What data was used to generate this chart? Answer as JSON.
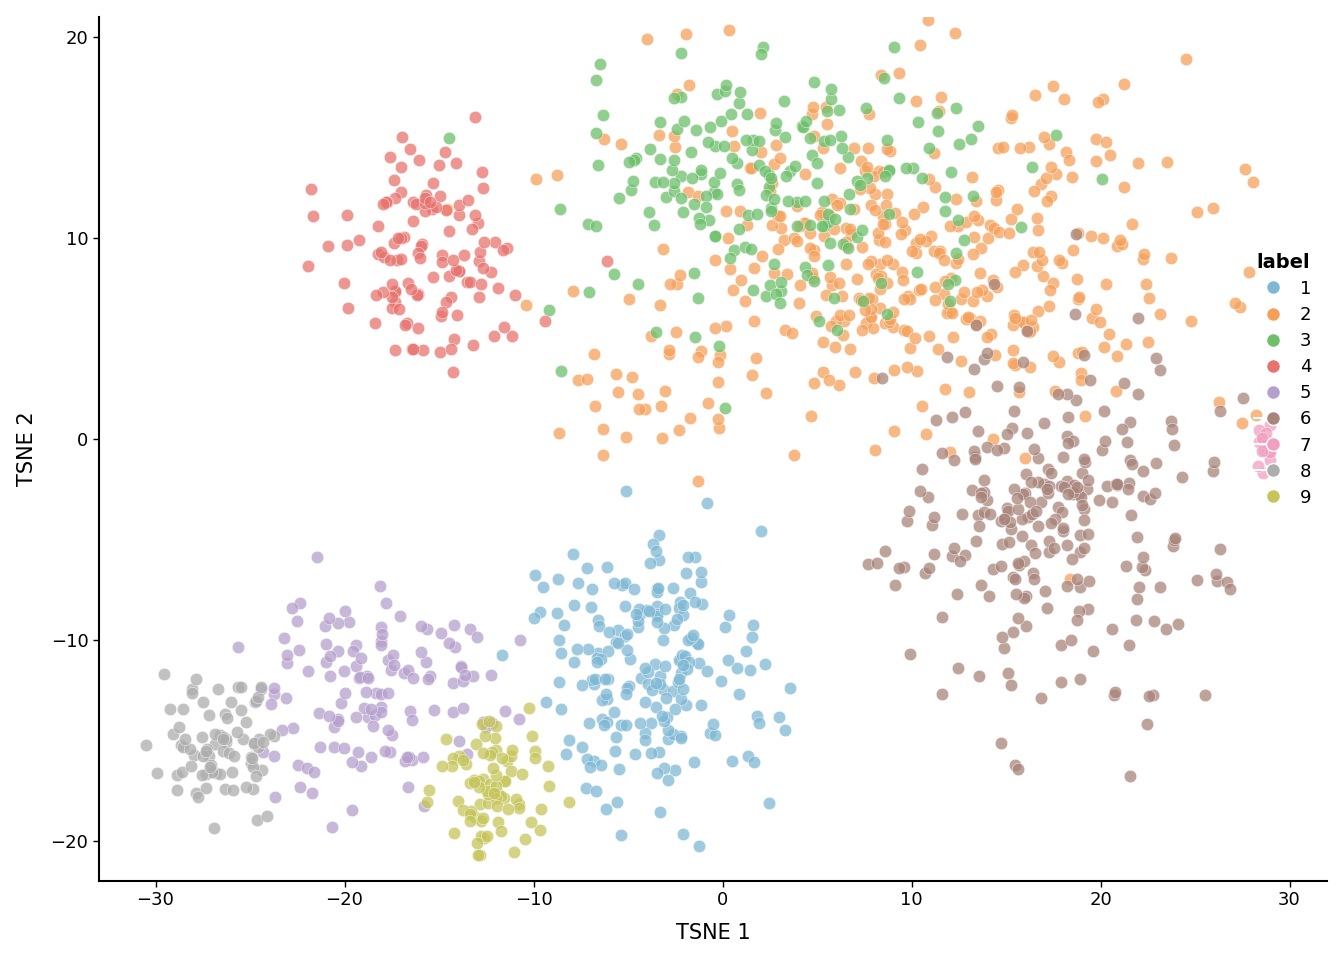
{
  "title": "",
  "xlabel": "TSNE 1",
  "ylabel": "TSNE 2",
  "xlim": [
    -33,
    32
  ],
  "ylim": [
    -22,
    21
  ],
  "xticks": [
    -30,
    -20,
    -10,
    0,
    10,
    20,
    30
  ],
  "yticks": [
    -20,
    -10,
    0,
    10,
    20
  ],
  "legend_title": "label",
  "clusters": {
    "1": {
      "color": "#7EB8D4",
      "label": "1"
    },
    "2": {
      "color": "#F5A05A",
      "label": "2"
    },
    "3": {
      "color": "#6DBF6B",
      "label": "3"
    },
    "4": {
      "color": "#E8736E",
      "label": "4"
    },
    "5": {
      "color": "#B59FCC",
      "label": "5"
    },
    "6": {
      "color": "#A8847A",
      "label": "6"
    },
    "7": {
      "color": "#F0A0C0",
      "label": "7"
    },
    "8": {
      "color": "#ADADAD",
      "label": "8"
    },
    "9": {
      "color": "#C5C55A",
      "label": "9"
    }
  },
  "point_size": 80,
  "alpha": 0.75,
  "background_color": "#ffffff",
  "figsize": [
    13.44,
    9.6
  ],
  "dpi": 100
}
